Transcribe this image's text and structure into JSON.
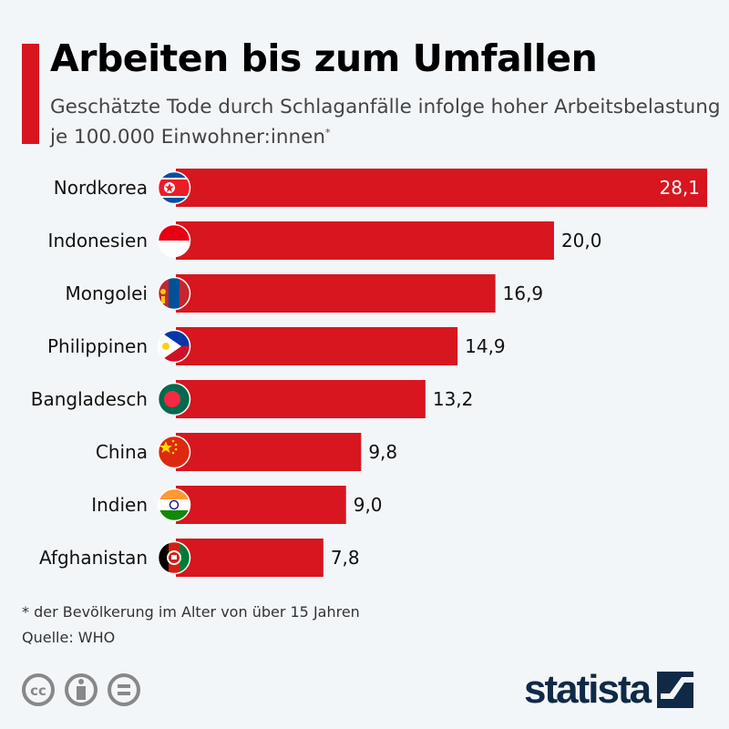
{
  "header": {
    "title": "Arbeiten bis zum Umfallen",
    "subtitle": "Geschätzte Tode durch Schlaganfälle infolge hoher Arbeitsbelastung je 100.000 Einwohner:innen",
    "subtitle_mark": "*"
  },
  "chart_data": {
    "type": "bar",
    "orientation": "horizontal",
    "title": "Arbeiten bis zum Umfallen",
    "categories": [
      "Nordkorea",
      "Indonesien",
      "Mongolei",
      "Philippinen",
      "Bangladesch",
      "China",
      "Indien",
      "Afghanistan"
    ],
    "values": [
      28.1,
      20.0,
      16.9,
      14.9,
      13.2,
      9.8,
      9.0,
      7.8
    ],
    "value_labels": [
      "28,1",
      "20,0",
      "16,9",
      "14,9",
      "13,2",
      "9,8",
      "9,0",
      "7,8"
    ],
    "xlim": [
      0,
      28.1
    ],
    "grid": false,
    "bar_color": "#d7161f"
  },
  "footer": {
    "note": "* der Bevölkerung im Alter von über 15 Jahren",
    "source": "Quelle: WHO",
    "logo": "statista",
    "license_icons": [
      "cc-icon",
      "by-icon",
      "nd-icon"
    ]
  }
}
